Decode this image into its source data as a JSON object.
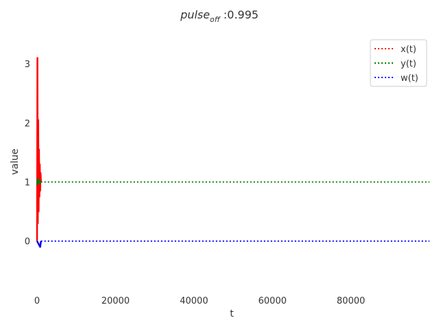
{
  "chart_data": {
    "type": "line",
    "title_prefix": "pulse",
    "title_subscript": "off",
    "title_suffix": " :0.995",
    "xlabel": "t",
    "ylabel": "value",
    "xlim": [
      0,
      100000
    ],
    "ylim": [
      -0.85,
      3.5
    ],
    "xticks": [
      0,
      20000,
      40000,
      60000,
      80000
    ],
    "xtick_labels": [
      "0",
      "20000",
      "40000",
      "60000",
      "80000"
    ],
    "yticks": [
      0,
      1,
      2,
      3
    ],
    "ytick_labels": [
      "0",
      "1",
      "2",
      "3"
    ],
    "grid": false,
    "legend_position": "top-right",
    "series": [
      {
        "name": "x(t)",
        "color": "#ff0000",
        "x": [
          0,
          100,
          200,
          300,
          400,
          500,
          600,
          700,
          800,
          900,
          1000
        ],
        "y": [
          0,
          3.1,
          0.3,
          2.05,
          0.5,
          1.55,
          0.75,
          1.3,
          0.85,
          1.15,
          1.0
        ]
      },
      {
        "name": "y(t)",
        "color": "#008000",
        "x": [
          0,
          200,
          400,
          600,
          800,
          1000,
          100000
        ],
        "y": [
          0.95,
          1.05,
          0.98,
          1.02,
          0.99,
          1.0,
          1.0
        ]
      },
      {
        "name": "w(t)",
        "color": "#0000ff",
        "x": [
          0,
          400,
          800,
          1000,
          100000
        ],
        "y": [
          0,
          -0.05,
          -0.1,
          0,
          0
        ]
      }
    ]
  }
}
